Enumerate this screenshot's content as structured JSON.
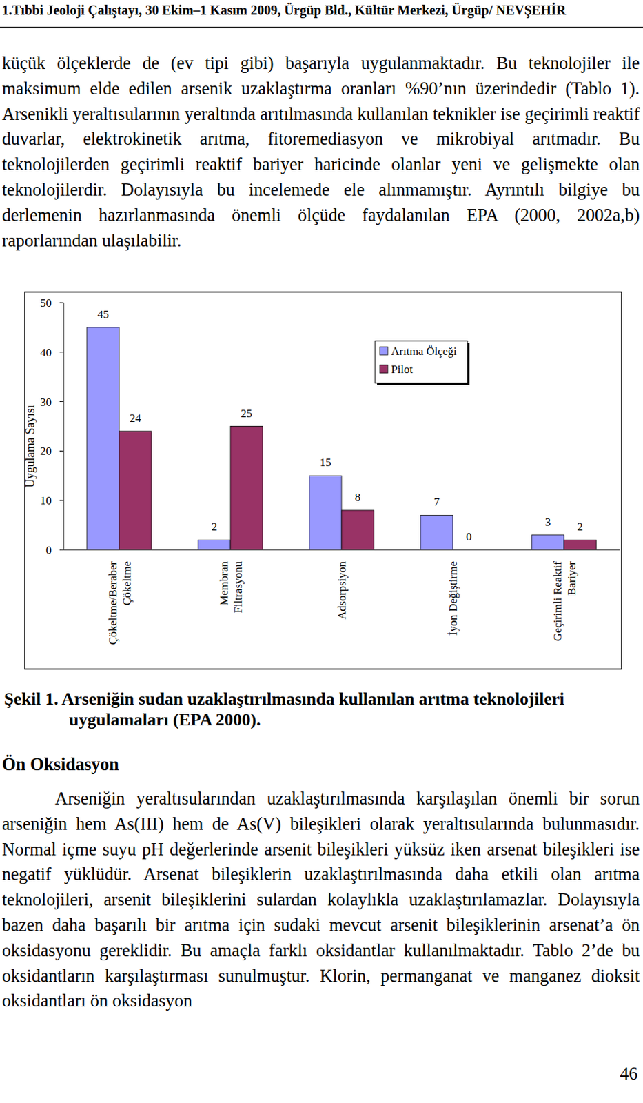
{
  "header": "1.Tıbbi Jeoloji Çalıştayı, 30 Ekim–1 Kasım 2009, Ürgüp Bld., Kültür Merkezi, Ürgüp/ NEVŞEHİR",
  "paragraph_1": "küçük ölçeklerde de (ev tipi gibi) başarıyla uygulanmaktadır. Bu teknolojiler ile maksimum elde edilen arsenik uzaklaştırma oranları %90’nın üzerindedir (Tablo 1). Arsenikli yeraltısularının yeraltında arıtılmasında kullanılan teknikler ise geçirimli reaktif duvarlar, elektrokinetik arıtma, fitoremediasyon ve mikrobiyal arıtmadır. Bu teknolojilerden geçirimli reaktif bariyer haricinde olanlar yeni ve gelişmekte olan teknolojilerdir. Dolayısıyla bu incelemede ele alınmamıştır. Ayrıntılı bilgiye bu derlemenin hazırlanmasında önemli ölçüde faydalanılan EPA (2000, 2002a,b) raporlarından ulaşılabilir.",
  "chart_data": {
    "type": "bar",
    "y_label": "Uygulama Sayısı",
    "categories": [
      "Çökeltme/Beraber Çökeltme",
      "Membran Filtrasyonu",
      "Adsorpsiyon",
      "İyon Değiştirme",
      "Geçirimli Reaktif Bariyer"
    ],
    "series": [
      {
        "name": "Arıtma Ölçeği",
        "color": "#9999ff",
        "values": [
          45,
          2,
          15,
          7,
          3
        ]
      },
      {
        "name": "Pilot",
        "color": "#993366",
        "values": [
          24,
          25,
          8,
          0,
          2
        ]
      }
    ],
    "ylim": [
      0,
      50
    ],
    "yticks": [
      0,
      10,
      20,
      30,
      40,
      50
    ],
    "grid": false,
    "legend": "top-right",
    "data_labels": true
  },
  "figure_caption": "Şekil 1. Arseniğin sudan uzaklaştırılmasında kullanılan arıtma teknolojileri uygulamaları (EPA 2000).",
  "section_title": "Ön Oksidasyon",
  "paragraph_2": "Arseniğin yeraltısularından uzaklaştırılmasında karşılaşılan önemli bir sorun arseniğin hem As(III) hem de As(V) bileşikleri olarak yeraltısularında bulunmasıdır. Normal içme suyu pH değerlerinde arsenit bileşikleri yüksüz iken arsenat bileşikleri ise negatif yüklüdür. Arsenat bileşiklerin uzaklaştırılmasında daha etkili olan arıtma teknolojileri, arsenit bileşiklerini sulardan kolaylıkla uzaklaştırılamazlar. Dolayısıyla bazen daha başarılı bir arıtma için sudaki mevcut arsenit bileşiklerinin arsenat’a ön oksidasyonu gereklidir. Bu amaçla farklı oksidantlar kullanılmaktadır. Tablo 2’de bu oksidantların karşılaştırması sunulmuştur. Klorin, permanganat ve manganez dioksit oksidantları ön oksidasyon",
  "page_number": "46"
}
